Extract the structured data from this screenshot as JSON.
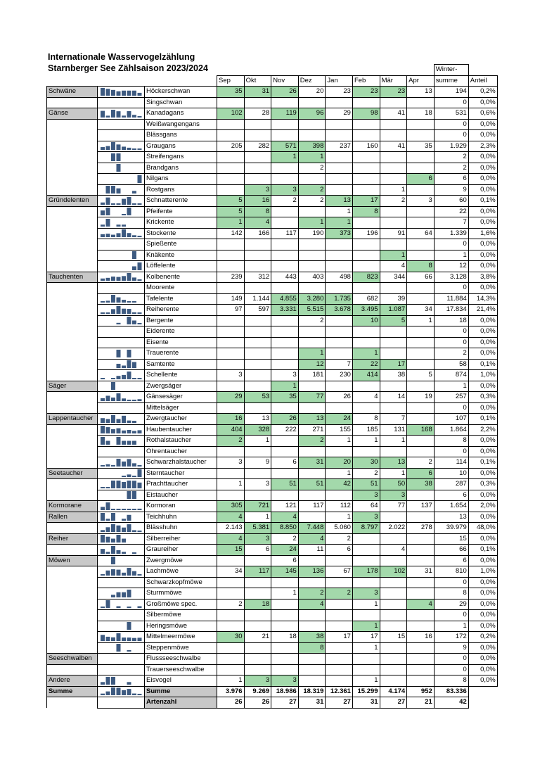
{
  "header": {
    "title": "Internationale Wasservogelzählung",
    "subtitle": "Starnberger See Zählsaison 2023/2024"
  },
  "table": {
    "columns": [
      "Sep",
      "Okt",
      "Nov",
      "Dez",
      "Jan",
      "Feb",
      "Mär",
      "Apr"
    ],
    "sum_header": [
      "Winter-",
      "summe"
    ],
    "share_header": "Anteil",
    "rows": [
      {
        "group": "Schwäne",
        "species": "Höckerschwan",
        "counts": [
          "35",
          "31",
          "26",
          "20",
          "23",
          "23",
          "23",
          "13"
        ],
        "sum": "194",
        "share": "0,2%",
        "green": [
          0,
          1,
          2,
          5,
          6
        ]
      },
      {
        "species": "Singschwan",
        "counts": [
          null,
          null,
          null,
          null,
          null,
          null,
          null,
          null
        ],
        "sum": "0",
        "share": "0,0%",
        "green": []
      },
      {
        "group": "Gänse",
        "species": "Kanadagans",
        "counts": [
          "102",
          "28",
          "119",
          "96",
          "29",
          "98",
          "41",
          "18"
        ],
        "sum": "531",
        "share": "0,6%",
        "green": [
          0,
          2,
          3,
          5
        ]
      },
      {
        "species": "Weißwangengans",
        "counts": [
          null,
          null,
          null,
          null,
          null,
          null,
          null,
          null
        ],
        "sum": "0",
        "share": "0,0%",
        "green": []
      },
      {
        "species": "Blässgans",
        "counts": [
          null,
          null,
          null,
          null,
          null,
          null,
          null,
          null
        ],
        "sum": "0",
        "share": "0,0%",
        "green": []
      },
      {
        "species": "Graugans",
        "counts": [
          "205",
          "282",
          "571",
          "398",
          "237",
          "160",
          "41",
          "35"
        ],
        "sum": "1.929",
        "share": "2,3%",
        "green": [
          2,
          3
        ]
      },
      {
        "species": "Streifengans",
        "counts": [
          null,
          null,
          "1",
          "1",
          null,
          null,
          null,
          null
        ],
        "sum": "2",
        "share": "0,0%",
        "green": [
          2,
          3
        ]
      },
      {
        "species": "Brandgans",
        "counts": [
          null,
          null,
          null,
          "2",
          null,
          null,
          null,
          null
        ],
        "sum": "2",
        "share": "0,0%",
        "green": []
      },
      {
        "species": "Nilgans",
        "counts": [
          null,
          null,
          null,
          null,
          null,
          null,
          null,
          "6"
        ],
        "sum": "6",
        "share": "0,0%",
        "green": [
          7
        ]
      },
      {
        "species": "Rostgans",
        "counts": [
          null,
          "3",
          "3",
          "2",
          null,
          null,
          "1",
          null
        ],
        "sum": "9",
        "share": "0,0%",
        "green": [
          1,
          2,
          3
        ]
      },
      {
        "group": "Gründelenten",
        "species": "Schnatterente",
        "counts": [
          "5",
          "16",
          "2",
          "2",
          "13",
          "17",
          "2",
          "3"
        ],
        "sum": "60",
        "share": "0,1%",
        "green": [
          0,
          1,
          4,
          5
        ]
      },
      {
        "species": "Pfeifente",
        "counts": [
          "5",
          "8",
          null,
          null,
          "1",
          "8",
          null,
          null
        ],
        "sum": "22",
        "share": "0,0%",
        "green": [
          0,
          1,
          5
        ]
      },
      {
        "species": "Krickente",
        "counts": [
          "1",
          "4",
          null,
          "1",
          "1",
          null,
          null,
          null
        ],
        "sum": "7",
        "share": "0,0%",
        "green": [
          0,
          1,
          3,
          4
        ]
      },
      {
        "species": "Stockente",
        "counts": [
          "142",
          "166",
          "117",
          "190",
          "373",
          "196",
          "91",
          "64"
        ],
        "sum": "1.339",
        "share": "1,6%",
        "green": [
          4
        ]
      },
      {
        "species": "Spießente",
        "counts": [
          null,
          null,
          null,
          null,
          null,
          null,
          null,
          null
        ],
        "sum": "0",
        "share": "0,0%",
        "green": []
      },
      {
        "species": "Knäkente",
        "counts": [
          null,
          null,
          null,
          null,
          null,
          null,
          "1",
          null
        ],
        "sum": "1",
        "share": "0,0%",
        "green": [
          6
        ]
      },
      {
        "species": "Löffelente",
        "counts": [
          null,
          null,
          null,
          null,
          null,
          null,
          "4",
          "8"
        ],
        "sum": "12",
        "share": "0,0%",
        "green": [
          7
        ]
      },
      {
        "group": "Tauchenten",
        "species": "Kolbenente",
        "counts": [
          "239",
          "312",
          "443",
          "403",
          "498",
          "823",
          "344",
          "66"
        ],
        "sum": "3.128",
        "share": "3,8%",
        "green": [
          5
        ]
      },
      {
        "species": "Moorente",
        "counts": [
          null,
          null,
          null,
          null,
          null,
          null,
          null,
          null
        ],
        "sum": "0",
        "share": "0,0%",
        "green": []
      },
      {
        "species": "Tafelente",
        "counts": [
          "149",
          "1.144",
          "4.855",
          "3.280",
          "1.735",
          "682",
          "39",
          null
        ],
        "sum": "11.884",
        "share": "14,3%",
        "green": [
          2,
          3,
          4
        ]
      },
      {
        "species": "Reiherente",
        "counts": [
          "97",
          "597",
          "3.331",
          "5.515",
          "3.678",
          "3.495",
          "1.087",
          "34"
        ],
        "sum": "17.834",
        "share": "21,4%",
        "green": [
          2,
          3,
          4,
          5,
          6
        ]
      },
      {
        "species": "Bergente",
        "counts": [
          null,
          null,
          null,
          "2",
          null,
          "10",
          "5",
          "1"
        ],
        "sum": "18",
        "share": "0,0%",
        "green": [
          5,
          6
        ]
      },
      {
        "species": "Eiderente",
        "counts": [
          null,
          null,
          null,
          null,
          null,
          null,
          null,
          null
        ],
        "sum": "0",
        "share": "0,0%",
        "green": []
      },
      {
        "species": "Eisente",
        "counts": [
          null,
          null,
          null,
          null,
          null,
          null,
          null,
          null
        ],
        "sum": "0",
        "share": "0,0%",
        "green": []
      },
      {
        "species": "Trauerente",
        "counts": [
          null,
          null,
          null,
          "1",
          null,
          "1",
          null,
          null
        ],
        "sum": "2",
        "share": "0,0%",
        "green": [
          3,
          5
        ]
      },
      {
        "species": "Samtente",
        "counts": [
          null,
          null,
          null,
          "12",
          "7",
          "22",
          "17",
          null
        ],
        "sum": "58",
        "share": "0,1%",
        "green": [
          3,
          5,
          6
        ]
      },
      {
        "species": "Schellente",
        "counts": [
          "3",
          null,
          "3",
          "181",
          "230",
          "414",
          "38",
          "5"
        ],
        "sum": "874",
        "share": "1,0%",
        "green": [
          5
        ]
      },
      {
        "group": "Säger",
        "species": "Zwergsäger",
        "counts": [
          null,
          null,
          "1",
          null,
          null,
          null,
          null,
          null
        ],
        "sum": "1",
        "share": "0,0%",
        "green": [
          2
        ]
      },
      {
        "species": "Gänsesäger",
        "counts": [
          "29",
          "53",
          "35",
          "77",
          "26",
          "4",
          "14",
          "19"
        ],
        "sum": "257",
        "share": "0,3%",
        "green": [
          0,
          1,
          2,
          3
        ]
      },
      {
        "species": "Mittelsäger",
        "counts": [
          null,
          null,
          null,
          null,
          null,
          null,
          null,
          null
        ],
        "sum": "0",
        "share": "0,0%",
        "green": []
      },
      {
        "group": "Lappentaucher",
        "species": "Zwergtaucher",
        "counts": [
          "16",
          "13",
          "26",
          "13",
          "24",
          "8",
          "7",
          null
        ],
        "sum": "107",
        "share": "0,1%",
        "green": [
          0,
          2,
          3,
          4
        ]
      },
      {
        "species": "Haubentaucher",
        "counts": [
          "404",
          "328",
          "222",
          "271",
          "155",
          "185",
          "131",
          "168"
        ],
        "sum": "1.864",
        "share": "2,2%",
        "green": [
          0,
          1,
          7
        ]
      },
      {
        "species": "Rothalstaucher",
        "counts": [
          "2",
          "1",
          null,
          "2",
          "1",
          "1",
          "1",
          null
        ],
        "sum": "8",
        "share": "0,0%",
        "green": [
          0,
          3
        ]
      },
      {
        "species": "Ohrentaucher",
        "counts": [
          null,
          null,
          null,
          null,
          null,
          null,
          null,
          null
        ],
        "sum": "0",
        "share": "0,0%",
        "green": []
      },
      {
        "species": "Schwarzhalstaucher",
        "counts": [
          "3",
          "9",
          "6",
          "31",
          "20",
          "30",
          "13",
          "2"
        ],
        "sum": "114",
        "share": "0,1%",
        "green": [
          3,
          4,
          5,
          6
        ]
      },
      {
        "group": "Seetaucher",
        "species": "Sterntaucher",
        "counts": [
          null,
          null,
          null,
          null,
          "1",
          "2",
          "1",
          "6"
        ],
        "sum": "10",
        "share": "0,0%",
        "green": [
          7
        ]
      },
      {
        "species": "Prachttaucher",
        "counts": [
          "1",
          "3",
          "51",
          "51",
          "42",
          "51",
          "50",
          "38"
        ],
        "sum": "287",
        "share": "0,3%",
        "green": [
          2,
          3,
          4,
          5,
          6,
          7
        ]
      },
      {
        "species": "Eistaucher",
        "counts": [
          null,
          null,
          null,
          null,
          null,
          "3",
          "3",
          null
        ],
        "sum": "6",
        "share": "0,0%",
        "green": [
          5,
          6
        ]
      },
      {
        "group": "Kormorane",
        "species": "Kormoran",
        "counts": [
          "305",
          "721",
          "121",
          "117",
          "112",
          "64",
          "77",
          "137"
        ],
        "sum": "1.654",
        "share": "2,0%",
        "green": [
          0,
          1
        ]
      },
      {
        "group": "Rallen",
        "species": "Teichhuhn",
        "counts": [
          "4",
          "1",
          "4",
          null,
          "1",
          "3",
          null,
          null
        ],
        "sum": "13",
        "share": "0,0%",
        "green": [
          0,
          2,
          5
        ]
      },
      {
        "species": "Blässhuhn",
        "counts": [
          "2.143",
          "5.381",
          "8.850",
          "7.448",
          "5.060",
          "8.797",
          "2.022",
          "278"
        ],
        "sum": "39.979",
        "share": "48,0%",
        "green": [
          1,
          2,
          3,
          5
        ]
      },
      {
        "group": "Reiher",
        "species": "Silberreiher",
        "counts": [
          "4",
          "3",
          "2",
          "4",
          "2",
          null,
          null,
          null
        ],
        "sum": "15",
        "share": "0,0%",
        "green": [
          0,
          1,
          3
        ]
      },
      {
        "species": "Graureiher",
        "counts": [
          "15",
          "6",
          "24",
          "11",
          "6",
          null,
          "4",
          null
        ],
        "sum": "66",
        "share": "0,1%",
        "green": [
          0,
          2
        ]
      },
      {
        "group": "Möwen",
        "species": "Zwergmöwe",
        "counts": [
          null,
          null,
          "6",
          null,
          null,
          null,
          null,
          null
        ],
        "sum": "6",
        "share": "0,0%",
        "green": []
      },
      {
        "species": "Lachmöwe",
        "counts": [
          "34",
          "117",
          "145",
          "136",
          "67",
          "178",
          "102",
          "31"
        ],
        "sum": "810",
        "share": "1,0%",
        "green": [
          1,
          2,
          3,
          5,
          6
        ]
      },
      {
        "species": "Schwarzkopfmöwe",
        "counts": [
          null,
          null,
          null,
          null,
          null,
          null,
          null,
          null
        ],
        "sum": "0",
        "share": "0,0%",
        "green": []
      },
      {
        "species": "Sturmmöwe",
        "counts": [
          null,
          null,
          "1",
          "2",
          "2",
          "3",
          null,
          null
        ],
        "sum": "8",
        "share": "0,0%",
        "green": [
          3,
          4,
          5
        ]
      },
      {
        "species": "Großmöwe spec.",
        "counts": [
          "2",
          "18",
          null,
          "4",
          null,
          "1",
          null,
          "4"
        ],
        "sum": "29",
        "share": "0,0%",
        "green": [
          1,
          3,
          7
        ]
      },
      {
        "species": "Silbermöwe",
        "counts": [
          null,
          null,
          null,
          null,
          null,
          null,
          null,
          null
        ],
        "sum": "0",
        "share": "0,0%",
        "green": []
      },
      {
        "species": "Heringsmöwe",
        "counts": [
          null,
          null,
          null,
          null,
          null,
          "1",
          null,
          null
        ],
        "sum": "1",
        "share": "0,0%",
        "green": [
          5
        ]
      },
      {
        "species": "Mittelmeermöwe",
        "counts": [
          "30",
          "21",
          "18",
          "38",
          "17",
          "17",
          "15",
          "16"
        ],
        "sum": "172",
        "share": "0,2%",
        "green": [
          0,
          3
        ]
      },
      {
        "species": "Steppenmöwe",
        "counts": [
          null,
          null,
          null,
          "8",
          null,
          "1",
          null,
          null
        ],
        "sum": "9",
        "share": "0,0%",
        "green": [
          3
        ]
      },
      {
        "group": "Seeschwalben",
        "species": "Flussseeschwalbe",
        "counts": [
          null,
          null,
          null,
          null,
          null,
          null,
          null,
          null
        ],
        "sum": "0",
        "share": "0,0%",
        "green": []
      },
      {
        "species": "Trauerseeschwalbe",
        "counts": [
          null,
          null,
          null,
          null,
          null,
          null,
          null,
          null
        ],
        "sum": "0",
        "share": "0,0%",
        "green": []
      },
      {
        "group": "Andere",
        "species": "Eisvogel",
        "counts": [
          "1",
          "3",
          "3",
          null,
          null,
          "1",
          null,
          null
        ],
        "sum": "8",
        "share": "0,0%",
        "green": [
          1,
          2
        ]
      }
    ],
    "total": {
      "group": "Summe",
      "species": "Summe",
      "counts": [
        "3.976",
        "9.269",
        "18.986",
        "18.319",
        "12.361",
        "15.299",
        "4.174",
        "952"
      ],
      "sum": "83.336"
    },
    "species_count": {
      "species": "Artenzahl",
      "counts": [
        "26",
        "26",
        "27",
        "31",
        "27",
        "31",
        "27",
        "21"
      ],
      "sum": "42"
    }
  }
}
